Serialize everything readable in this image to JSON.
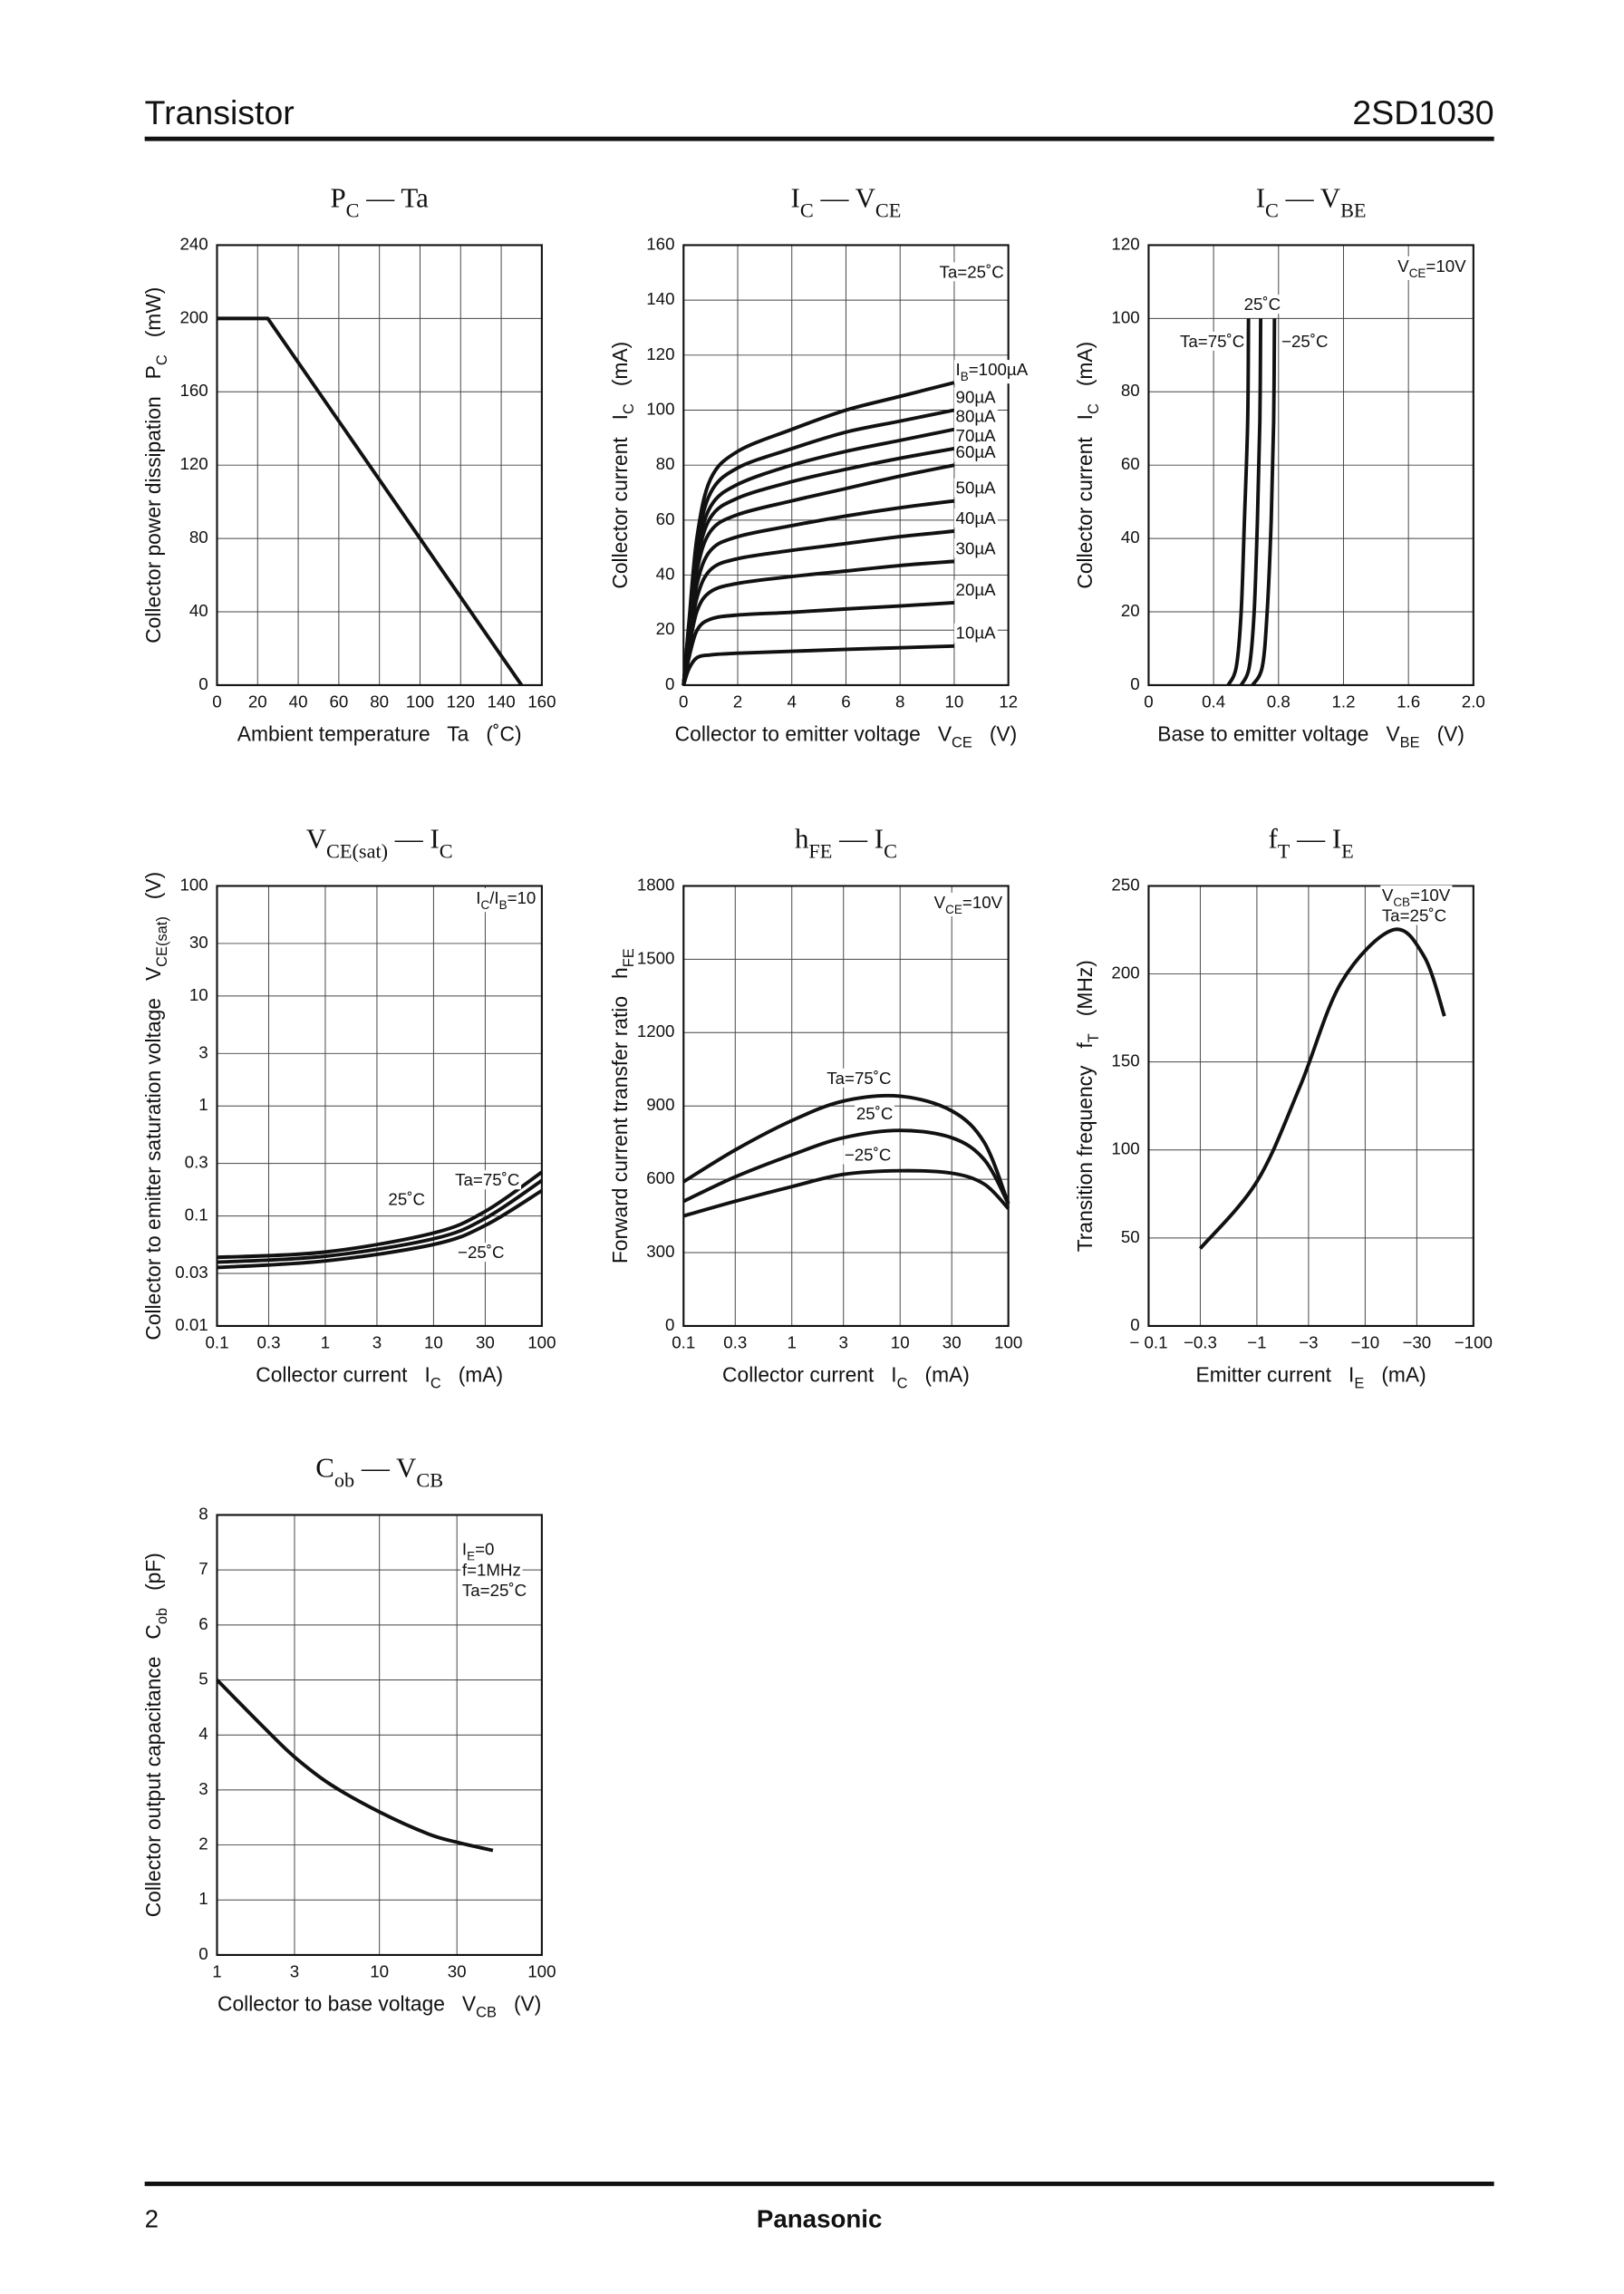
{
  "header": {
    "title": "Transistor",
    "part": "2SD1030"
  },
  "footer": {
    "page": "2",
    "brand": "Panasonic"
  },
  "chart_data": [
    {
      "type": "line",
      "title": [
        {
          "text": "P"
        },
        {
          "text": "C",
          "sub": true
        },
        {
          "text": " — Ta"
        }
      ],
      "xlabel": "Ambient temperature   Ta   (˚C)",
      "ylabel": [
        {
          "text": "Collector power dissipation   P"
        },
        {
          "text": "C",
          "sub": true
        },
        {
          "text": "   (mW)"
        }
      ],
      "xlim": [
        0,
        160
      ],
      "xticks": [
        0,
        20,
        40,
        60,
        80,
        100,
        120,
        140,
        160
      ],
      "ylim": [
        0,
        240
      ],
      "yticks": [
        0,
        40,
        80,
        120,
        160,
        200,
        240
      ],
      "grid": true,
      "color": "#111111",
      "smooth": false,
      "series": [
        {
          "x": [
            0,
            25,
            150
          ],
          "values": [
            200,
            200,
            0
          ]
        }
      ]
    },
    {
      "type": "line",
      "title": [
        {
          "text": "I"
        },
        {
          "text": "C",
          "sub": true
        },
        {
          "text": " — V"
        },
        {
          "text": "CE",
          "sub": true
        }
      ],
      "xlabel": [
        {
          "text": "Collector to emitter voltage   V"
        },
        {
          "text": "CE",
          "sub": true
        },
        {
          "text": "   (V)"
        }
      ],
      "ylabel": [
        {
          "text": "Collector current   I"
        },
        {
          "text": "C",
          "sub": true
        },
        {
          "text": "   (mA)"
        }
      ],
      "xlim": [
        0,
        12
      ],
      "xticks": [
        0,
        2,
        4,
        6,
        8,
        10,
        12
      ],
      "ylim": [
        0,
        160
      ],
      "yticks": [
        0,
        20,
        40,
        60,
        80,
        100,
        120,
        140,
        160
      ],
      "grid": true,
      "color": "#111111",
      "smooth": true,
      "annotations": [
        "Ta=25˚C"
      ],
      "series": [
        {
          "name": [
            {
              "text": "I"
            },
            {
              "text": "B",
              "sub": true
            },
            {
              "text": "=100µA"
            }
          ],
          "x": [
            0,
            0.2,
            0.5,
            1,
            2,
            4,
            6,
            8,
            10
          ],
          "values": [
            0,
            23,
            54,
            75,
            85,
            93,
            100,
            105,
            110
          ]
        },
        {
          "name": "90µA",
          "x": [
            0,
            0.2,
            0.5,
            1,
            2,
            4,
            6,
            8,
            10
          ],
          "values": [
            0,
            22,
            51,
            70,
            79,
            86,
            92,
            96,
            100
          ]
        },
        {
          "name": "80µA",
          "x": [
            0,
            0.2,
            0.5,
            1,
            2,
            4,
            6,
            8,
            10
          ],
          "values": [
            0,
            21,
            48,
            65,
            73,
            80,
            85,
            89,
            93
          ]
        },
        {
          "name": "70µA",
          "x": [
            0,
            0.2,
            0.5,
            1,
            2,
            4,
            6,
            8,
            10
          ],
          "values": [
            0,
            20,
            45,
            61,
            68,
            74,
            78.5,
            82.5,
            86
          ]
        },
        {
          "name": "60µA",
          "x": [
            0,
            0.2,
            0.5,
            1,
            2,
            4,
            6,
            8,
            10
          ],
          "values": [
            0,
            19,
            42,
            56,
            62,
            67,
            71.5,
            76,
            80
          ]
        },
        {
          "name": "50µA",
          "x": [
            0,
            0.2,
            0.5,
            1,
            2,
            4,
            6,
            8,
            10
          ],
          "values": [
            0,
            17,
            37,
            49,
            54,
            58,
            61.5,
            64.5,
            67
          ]
        },
        {
          "name": "40µA",
          "x": [
            0,
            0.2,
            0.5,
            1,
            2,
            4,
            6,
            8,
            10
          ],
          "values": [
            0,
            15,
            32,
            42,
            46,
            49,
            51.5,
            54,
            56
          ]
        },
        {
          "name": "30µA",
          "x": [
            0,
            0.2,
            0.5,
            1,
            2,
            4,
            6,
            8,
            10
          ],
          "values": [
            0,
            13,
            27,
            34,
            37,
            39.5,
            41.5,
            43.5,
            45
          ]
        },
        {
          "name": "20µA",
          "x": [
            0,
            0.2,
            0.5,
            1,
            2,
            4,
            6,
            8,
            10
          ],
          "values": [
            0,
            10,
            20,
            24,
            25.5,
            26.5,
            27.7,
            28.8,
            30
          ]
        },
        {
          "name": "10µA",
          "x": [
            0,
            0.2,
            0.5,
            1,
            2,
            4,
            6,
            8,
            10
          ],
          "values": [
            0,
            6,
            10,
            11,
            11.6,
            12.3,
            13,
            13.6,
            14.2
          ]
        }
      ]
    },
    {
      "type": "line",
      "title": [
        {
          "text": "I"
        },
        {
          "text": "C",
          "sub": true
        },
        {
          "text": " — V"
        },
        {
          "text": "BE",
          "sub": true
        }
      ],
      "xlabel": [
        {
          "text": "Base to emitter voltage   V"
        },
        {
          "text": "BE",
          "sub": true
        },
        {
          "text": "   (V)"
        }
      ],
      "ylabel": [
        {
          "text": "Collector current   I"
        },
        {
          "text": "C",
          "sub": true
        },
        {
          "text": "   (mA)"
        }
      ],
      "xlim": [
        0,
        2
      ],
      "xticks": [
        0,
        0.4,
        0.8,
        1.2,
        1.6,
        {
          "value": 2,
          "label": "2.0"
        }
      ],
      "ylim": [
        0,
        120
      ],
      "yticks": [
        0,
        20,
        40,
        60,
        80,
        100,
        120
      ],
      "grid": true,
      "color": "#111111",
      "smooth": true,
      "annotations": [
        [
          {
            "text": "V"
          },
          {
            "text": "CE",
            "sub": true
          },
          {
            "text": "=10V"
          }
        ]
      ],
      "series": [
        {
          "name": "Ta=75˚C",
          "x": [
            0.49,
            0.54,
            0.57,
            0.59,
            0.61,
            0.615
          ],
          "values": [
            0,
            5,
            20,
            45,
            72,
            100
          ]
        },
        {
          "name": "25˚C",
          "x": [
            0.57,
            0.62,
            0.65,
            0.67,
            0.685,
            0.69
          ],
          "values": [
            0,
            5,
            20,
            45,
            72,
            100
          ]
        },
        {
          "name": "−25˚C",
          "x": [
            0.64,
            0.7,
            0.73,
            0.755,
            0.77,
            0.775
          ],
          "values": [
            0,
            5,
            20,
            45,
            72,
            100
          ]
        }
      ]
    },
    {
      "type": "line",
      "title": [
        {
          "text": "V"
        },
        {
          "text": "CE(sat)",
          "sub": true
        },
        {
          "text": " — I"
        },
        {
          "text": "C",
          "sub": true
        }
      ],
      "xlabel": [
        {
          "text": "Collector current   I"
        },
        {
          "text": "C",
          "sub": true
        },
        {
          "text": "   (mA)"
        }
      ],
      "ylabel": [
        {
          "text": "Collector to emitter saturation voltage   V"
        },
        {
          "text": "CE(sat)",
          "sub": true
        },
        {
          "text": "   (V)"
        }
      ],
      "xscale": "log",
      "yscale": "log",
      "xlim": [
        0.1,
        100
      ],
      "xticks": [
        0.1,
        0.3,
        1,
        3,
        10,
        30,
        100
      ],
      "ylim": [
        0.01,
        100
      ],
      "yticks": [
        0.01,
        0.03,
        0.1,
        0.3,
        1,
        3,
        10,
        30,
        100
      ],
      "grid": true,
      "color": "#111111",
      "smooth": true,
      "annotations": [
        [
          {
            "text": "I"
          },
          {
            "text": "C",
            "sub": true
          },
          {
            "text": "/I"
          },
          {
            "text": "B",
            "sub": true
          },
          {
            "text": "=10"
          }
        ]
      ],
      "series": [
        {
          "name": "Ta=75˚C",
          "x": [
            0.1,
            1,
            10,
            30,
            100
          ],
          "values": [
            0.042,
            0.047,
            0.07,
            0.11,
            0.25
          ]
        },
        {
          "name": "25˚C",
          "x": [
            0.1,
            1,
            10,
            30,
            100
          ],
          "values": [
            0.038,
            0.043,
            0.062,
            0.095,
            0.21
          ]
        },
        {
          "name": "−25˚C",
          "x": [
            0.1,
            1,
            10,
            30,
            100
          ],
          "values": [
            0.034,
            0.039,
            0.055,
            0.082,
            0.17
          ]
        }
      ]
    },
    {
      "type": "line",
      "title": [
        {
          "text": "h"
        },
        {
          "text": "FE",
          "sub": true
        },
        {
          "text": " — I"
        },
        {
          "text": "C",
          "sub": true
        }
      ],
      "xlabel": [
        {
          "text": "Collector current   I"
        },
        {
          "text": "C",
          "sub": true
        },
        {
          "text": "   (mA)"
        }
      ],
      "ylabel": [
        {
          "text": "Forward current transfer ratio   h"
        },
        {
          "text": "FE",
          "sub": true
        }
      ],
      "xscale": "log",
      "xlim": [
        0.1,
        100
      ],
      "xticks": [
        0.1,
        0.3,
        1,
        3,
        10,
        30,
        100
      ],
      "ylim": [
        0,
        1800
      ],
      "yticks": [
        0,
        300,
        600,
        900,
        1200,
        1500,
        1800
      ],
      "grid": true,
      "color": "#111111",
      "smooth": true,
      "annotations": [
        [
          {
            "text": "V"
          },
          {
            "text": "CE",
            "sub": true
          },
          {
            "text": "=10V"
          }
        ]
      ],
      "series": [
        {
          "name": "Ta=75˚C",
          "x": [
            0.1,
            0.3,
            1,
            3,
            10,
            30,
            60,
            100
          ],
          "values": [
            590,
            720,
            840,
            920,
            940,
            880,
            750,
            500
          ]
        },
        {
          "name": "25˚C",
          "x": [
            0.1,
            0.3,
            1,
            3,
            10,
            30,
            60,
            100
          ],
          "values": [
            510,
            610,
            700,
            770,
            800,
            770,
            680,
            500
          ]
        },
        {
          "name": "−25˚C",
          "x": [
            0.1,
            0.3,
            1,
            3,
            10,
            30,
            60,
            100
          ],
          "values": [
            450,
            510,
            570,
            620,
            635,
            625,
            580,
            480
          ]
        }
      ]
    },
    {
      "type": "line",
      "title": [
        {
          "text": "f"
        },
        {
          "text": "T",
          "sub": true
        },
        {
          "text": " — I"
        },
        {
          "text": "E",
          "sub": true
        }
      ],
      "xlabel": [
        {
          "text": "Emitter current   I"
        },
        {
          "text": "E",
          "sub": true
        },
        {
          "text": "   (mA)"
        }
      ],
      "ylabel": [
        {
          "text": "Transition frequency   f"
        },
        {
          "text": "T",
          "sub": true
        },
        {
          "text": "   (MHz)"
        }
      ],
      "xscale": "log",
      "xlim": [
        -0.1,
        -100
      ],
      "xticks": [
        {
          "value": -0.1,
          "label": "− 0.1"
        },
        {
          "value": -0.3,
          "label": "−0.3"
        },
        {
          "value": -1,
          "label": "−1"
        },
        {
          "value": -3,
          "label": "−3"
        },
        {
          "value": -10,
          "label": "−10"
        },
        {
          "value": -30,
          "label": "−30"
        },
        {
          "value": -100,
          "label": "−100"
        }
      ],
      "ylim": [
        0,
        250
      ],
      "yticks": [
        0,
        50,
        100,
        150,
        200,
        250
      ],
      "grid": true,
      "color": "#111111",
      "smooth": true,
      "annotations": [
        [
          {
            "text": "V"
          },
          {
            "text": "CB",
            "sub": true
          },
          {
            "text": "=10V"
          }
        ],
        "Ta=25˚C"
      ],
      "series": [
        {
          "x": [
            -0.3,
            -1,
            -2.5,
            -6,
            -18,
            -35,
            -54
          ],
          "values": [
            44,
            82,
            136,
            195,
            225,
            210,
            176
          ]
        }
      ]
    },
    {
      "type": "line",
      "title": [
        {
          "text": "C"
        },
        {
          "text": "ob",
          "sub": true
        },
        {
          "text": " — V"
        },
        {
          "text": "CB",
          "sub": true
        }
      ],
      "xlabel": [
        {
          "text": "Collector to base voltage   V"
        },
        {
          "text": "CB",
          "sub": true
        },
        {
          "text": "   (V)"
        }
      ],
      "ylabel": [
        {
          "text": "Collector output capacitance   C"
        },
        {
          "text": "ob",
          "sub": true
        },
        {
          "text": "   (pF)"
        }
      ],
      "xscale": "log",
      "xlim": [
        1,
        100
      ],
      "xticks": [
        1,
        3,
        10,
        30,
        100
      ],
      "ylim": [
        0,
        8
      ],
      "yticks": [
        0,
        1,
        2,
        3,
        4,
        5,
        6,
        7,
        8
      ],
      "grid": true,
      "color": "#111111",
      "smooth": true,
      "annotations": [
        [
          {
            "text": "I"
          },
          {
            "text": "E",
            "sub": true
          },
          {
            "text": "=0"
          }
        ],
        "f=1MHz",
        "Ta=25˚C"
      ],
      "series": [
        {
          "x": [
            1,
            2,
            3,
            5,
            10,
            20,
            30,
            50
          ],
          "values": [
            5,
            4.1,
            3.6,
            3.1,
            2.6,
            2.2,
            2.05,
            1.9
          ]
        }
      ]
    }
  ]
}
